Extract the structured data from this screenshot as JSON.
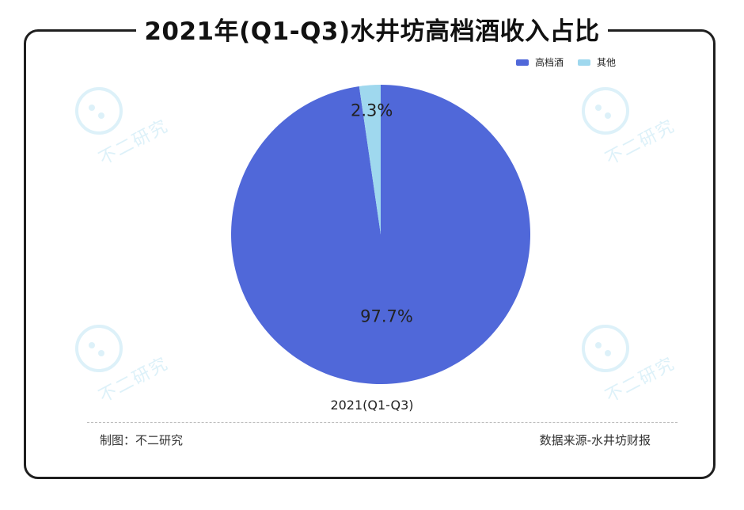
{
  "title": "2021年(Q1-Q3)水井坊高档酒收入占比",
  "legend": [
    {
      "name": "高档酒",
      "color": "#5068d9"
    },
    {
      "name": "其他",
      "color": "#9fd8ee"
    }
  ],
  "chart_data": {
    "type": "pie",
    "category": "2021(Q1-Q3)",
    "slices": [
      {
        "name": "高档酒",
        "value": 97.7,
        "label": "97.7%",
        "color": "#5068d9"
      },
      {
        "name": "其他",
        "value": 2.3,
        "label": "2.3%",
        "color": "#9fd8ee"
      }
    ]
  },
  "footer": {
    "left": "制图：不二研究",
    "right": "数据来源-水井坊财报"
  },
  "watermark": {
    "text": "不二研究",
    "color": "#9fd8ee"
  }
}
